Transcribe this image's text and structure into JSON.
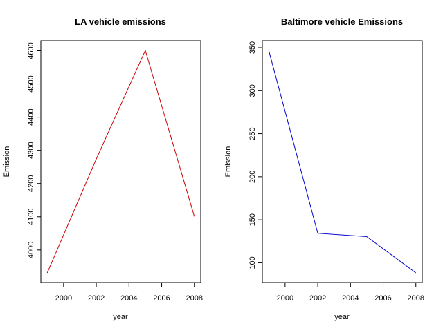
{
  "chart_data": [
    {
      "type": "line",
      "title": "LA vehicle emissions",
      "xlabel": "year",
      "ylabel": "Emission",
      "x": [
        1999,
        2002,
        2005,
        2008
      ],
      "series": [
        {
          "values": [
            3931,
            4274,
            4601,
            4101
          ],
          "color": "#cc0000"
        }
      ],
      "xlim": [
        1999,
        2008
      ],
      "ylim": [
        3931,
        4601
      ],
      "xticks": [
        "2000",
        "2002",
        "2004",
        "2006",
        "2008"
      ],
      "yticks": [
        "4000",
        "4100",
        "4200",
        "4300",
        "4400",
        "4500",
        "4600"
      ],
      "grid": false
    },
    {
      "type": "line",
      "title": "Baltimore vehicle Emissions",
      "xlabel": "year",
      "ylabel": "Emission",
      "x": [
        1999,
        2002,
        2005,
        2008
      ],
      "series": [
        {
          "values": [
            346.8,
            134.3,
            130.4,
            88.3
          ],
          "color": "#0000cc"
        }
      ],
      "xlim": [
        1999,
        2008
      ],
      "ylim": [
        88.3,
        346.8
      ],
      "xticks": [
        "2000",
        "2002",
        "2004",
        "2006",
        "2008"
      ],
      "yticks": [
        "100",
        "150",
        "200",
        "250",
        "300",
        "350"
      ],
      "grid": false
    }
  ]
}
